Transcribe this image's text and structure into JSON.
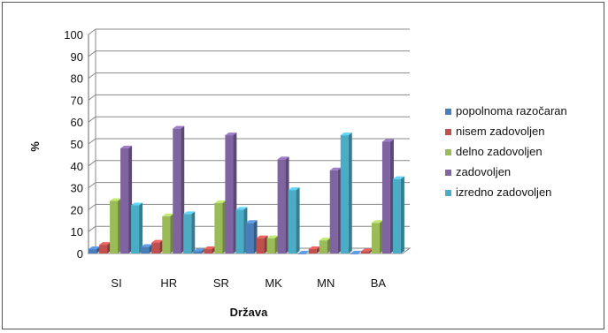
{
  "chart_data": {
    "type": "bar",
    "title": "",
    "xlabel": "Država",
    "ylabel": "%",
    "ylim": [
      0,
      100
    ],
    "yticks": [
      0,
      10,
      20,
      30,
      40,
      50,
      60,
      70,
      80,
      90,
      100
    ],
    "grid": true,
    "legend_position": "right",
    "categories": [
      "SI",
      "HR",
      "SR",
      "MK",
      "MN",
      "BA"
    ],
    "series": [
      {
        "name": "popolnoma razočaran",
        "color": "#4a7ebb",
        "values": [
          2,
          3,
          1,
          14,
          0,
          0
        ]
      },
      {
        "name": "nisem zadovoljen",
        "color": "#c0504d",
        "values": [
          4,
          5,
          2,
          7,
          2,
          1
        ]
      },
      {
        "name": "delno zadovoljen",
        "color": "#9bbb59",
        "values": [
          24,
          17,
          23,
          7,
          6,
          14
        ]
      },
      {
        "name": "zadovoljen",
        "color": "#8064a2",
        "values": [
          48,
          57,
          54,
          43,
          38,
          51
        ]
      },
      {
        "name": "izredno zadovoljen",
        "color": "#4bacc6",
        "values": [
          22,
          18,
          20,
          29,
          54,
          34
        ]
      }
    ]
  }
}
